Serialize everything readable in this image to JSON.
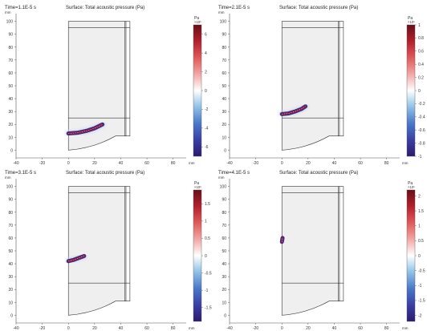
{
  "figure_title": "",
  "chart_data": [
    {
      "type": "heatmap",
      "time_label": "Time=1.1E-5 s",
      "title": "Surface: Total acoustic pressure (Pa)",
      "x_unit": "mm",
      "y_unit": "mm",
      "xlim": [
        -40,
        90
      ],
      "ylim": [
        -6,
        106
      ],
      "x_ticks": [
        "-40",
        "-20",
        "0",
        "20",
        "40",
        "60",
        "80"
      ],
      "x_tick_values": [
        -40,
        -20,
        0,
        20,
        40,
        60,
        80
      ],
      "y_ticks": [
        "0",
        "10",
        "20",
        "30",
        "40",
        "50",
        "60",
        "70",
        "80",
        "90",
        "100"
      ],
      "y_tick_values": [
        0,
        10,
        20,
        30,
        40,
        50,
        60,
        70,
        80,
        90,
        100
      ],
      "colorbar": {
        "unit": "Pa",
        "multiplier": "×10⁵",
        "range": [
          -7,
          7
        ],
        "ticks": [
          "6",
          "4",
          "2",
          "0",
          "-2",
          "-4",
          "-6"
        ],
        "tick_values": [
          6,
          4,
          2,
          0,
          -2,
          -4,
          -6
        ]
      },
      "wavefront": {
        "x": [
          0,
          7,
          14,
          20,
          26
        ],
        "y": [
          13,
          13.5,
          15,
          17,
          20
        ]
      }
    },
    {
      "type": "heatmap",
      "time_label": "Time=2.1E-5 s",
      "title": "Surface: Total acoustic pressure (Pa)",
      "x_unit": "mm",
      "y_unit": "mm",
      "xlim": [
        -40,
        90
      ],
      "ylim": [
        -6,
        106
      ],
      "x_ticks": [
        "-40",
        "-20",
        "0",
        "20",
        "40",
        "60",
        "80"
      ],
      "x_tick_values": [
        -40,
        -20,
        0,
        20,
        40,
        60,
        80
      ],
      "y_ticks": [
        "0",
        "10",
        "20",
        "30",
        "40",
        "50",
        "60",
        "70",
        "80",
        "90",
        "100"
      ],
      "y_tick_values": [
        0,
        10,
        20,
        30,
        40,
        50,
        60,
        70,
        80,
        90,
        100
      ],
      "colorbar": {
        "unit": "Pa",
        "multiplier": "×10⁵",
        "range": [
          -1,
          1
        ],
        "ticks": [
          "1",
          "0.8",
          "0.6",
          "0.4",
          "0.2",
          "0",
          "-0.2",
          "-0.4",
          "-0.6",
          "-0.8",
          "-1"
        ],
        "tick_values": [
          1,
          0.8,
          0.6,
          0.4,
          0.2,
          0,
          -0.2,
          -0.4,
          -0.6,
          -0.8,
          -1
        ]
      },
      "wavefront": {
        "x": [
          0,
          5,
          10,
          15,
          18
        ],
        "y": [
          28,
          28.5,
          30,
          32,
          34
        ]
      }
    },
    {
      "type": "heatmap",
      "time_label": "Time=3.1E-5 s",
      "title": "Surface: Total acoustic pressure (Pa)",
      "x_unit": "mm",
      "y_unit": "mm",
      "xlim": [
        -40,
        90
      ],
      "ylim": [
        -6,
        106
      ],
      "x_ticks": [
        "-40",
        "-20",
        "0",
        "20",
        "40",
        "60",
        "80"
      ],
      "x_tick_values": [
        -40,
        -20,
        0,
        20,
        40,
        60,
        80
      ],
      "y_ticks": [
        "0",
        "10",
        "20",
        "30",
        "40",
        "50",
        "60",
        "70",
        "80",
        "90",
        "100"
      ],
      "y_tick_values": [
        0,
        10,
        20,
        30,
        40,
        50,
        60,
        70,
        80,
        90,
        100
      ],
      "colorbar": {
        "unit": "Pa",
        "multiplier": "×10⁵",
        "range": [
          -1.9,
          1.9
        ],
        "ticks": [
          "1.5",
          "1",
          "0.5",
          "0",
          "-0.5",
          "-1",
          "-1.5"
        ],
        "tick_values": [
          1.5,
          1,
          0.5,
          0,
          -0.5,
          -1,
          -1.5
        ]
      },
      "wavefront": {
        "x": [
          0,
          4,
          8,
          12
        ],
        "y": [
          42,
          43,
          44.5,
          46
        ]
      }
    },
    {
      "type": "heatmap",
      "time_label": "Time=4.1E-5 s",
      "title": "Surface: Total acoustic pressure (Pa)",
      "x_unit": "mm",
      "y_unit": "mm",
      "xlim": [
        -40,
        90
      ],
      "ylim": [
        -6,
        106
      ],
      "x_ticks": [
        "-40",
        "-20",
        "0",
        "20",
        "40",
        "60",
        "80"
      ],
      "x_tick_values": [
        -40,
        -20,
        0,
        20,
        40,
        60,
        80
      ],
      "y_ticks": [
        "0",
        "10",
        "20",
        "30",
        "40",
        "50",
        "60",
        "70",
        "80",
        "90",
        "100"
      ],
      "y_tick_values": [
        0,
        10,
        20,
        30,
        40,
        50,
        60,
        70,
        80,
        90,
        100
      ],
      "colorbar": {
        "unit": "Pa",
        "multiplier": "×10⁵",
        "range": [
          -2.2,
          2.2
        ],
        "ticks": [
          "2",
          "1.5",
          "1",
          "0.5",
          "0",
          "-0.5",
          "-1",
          "-1.5",
          "-2"
        ],
        "tick_values": [
          2,
          1.5,
          1,
          0.5,
          0,
          -0.5,
          -1,
          -1.5,
          -2
        ]
      },
      "wavefront": {
        "x": [
          0,
          0.5
        ],
        "y": [
          57,
          60
        ]
      }
    }
  ],
  "geometry": {
    "domain_fill": "#efefef",
    "line_color": "#333333",
    "outline": [
      [
        0,
        0
      ],
      [
        0,
        100
      ],
      [
        44,
        100
      ],
      [
        44,
        11
      ],
      [
        36,
        11
      ]
    ],
    "arc": {
      "from": [
        36,
        11
      ],
      "to": [
        0,
        0
      ]
    },
    "inner_strip": [
      [
        43,
        11
      ],
      [
        47,
        11
      ],
      [
        47,
        100
      ],
      [
        43,
        100
      ]
    ],
    "h_line_lower": {
      "y": 25,
      "x": [
        0,
        47
      ]
    },
    "h_line_upper": {
      "y": 95,
      "x": [
        0,
        47
      ]
    }
  },
  "colors": {
    "colormap": [
      "#2d1a6e",
      "#3a3fa6",
      "#4a78c9",
      "#8fc1e6",
      "#ffffff",
      "#f2a6a6",
      "#e05a5a",
      "#b41f2e",
      "#6b0d1a"
    ],
    "wave_positive": "#8b1e3f",
    "wave_negative": "#3c2a86"
  }
}
